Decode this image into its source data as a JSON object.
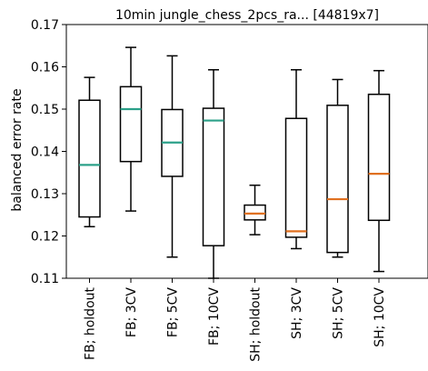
{
  "chart_data": {
    "type": "box",
    "title": "10min jungle_chess_2pcs_ra... [44819x7]",
    "xlabel": "",
    "ylabel": "balanced error rate",
    "ylim": [
      0.11,
      0.17
    ],
    "yticks": [
      0.11,
      0.12,
      0.13,
      0.14,
      0.15,
      0.16,
      0.17
    ],
    "ytick_labels": [
      "0.11",
      "0.12",
      "0.13",
      "0.14",
      "0.15",
      "0.16",
      "0.17"
    ],
    "grid": false,
    "categories": [
      "FB; holdout",
      "FB; 3CV",
      "FB; 5CV",
      "FB; 10CV",
      "SH; holdout",
      "SH; 3CV",
      "SH; 5CV",
      "SH; 10CV"
    ],
    "boxes": [
      {
        "whisker_low": 0.1222,
        "q1": 0.1245,
        "median": 0.1368,
        "q3": 0.1521,
        "whisker_high": 0.1575,
        "median_color": "#2ca089"
      },
      {
        "whisker_low": 0.1259,
        "q1": 0.1376,
        "median": 0.15,
        "q3": 0.1553,
        "whisker_high": 0.1646,
        "median_color": "#2ca089"
      },
      {
        "whisker_low": 0.115,
        "q1": 0.1341,
        "median": 0.1421,
        "q3": 0.1499,
        "whisker_high": 0.1626,
        "median_color": "#2ca089"
      },
      {
        "whisker_low": 0.11,
        "q1": 0.1177,
        "median": 0.1473,
        "q3": 0.1502,
        "whisker_high": 0.1593,
        "median_color": "#2ca089"
      },
      {
        "whisker_low": 0.1203,
        "q1": 0.1238,
        "median": 0.1253,
        "q3": 0.1273,
        "whisker_high": 0.132,
        "median_color": "#e07020"
      },
      {
        "whisker_low": 0.117,
        "q1": 0.1197,
        "median": 0.1211,
        "q3": 0.1478,
        "whisker_high": 0.1593,
        "median_color": "#e07020"
      },
      {
        "whisker_low": 0.115,
        "q1": 0.1161,
        "median": 0.1287,
        "q3": 0.1509,
        "whisker_high": 0.157,
        "median_color": "#e07020"
      },
      {
        "whisker_low": 0.1116,
        "q1": 0.1237,
        "median": 0.1347,
        "q3": 0.1535,
        "whisker_high": 0.1591,
        "median_color": "#e07020"
      }
    ]
  }
}
